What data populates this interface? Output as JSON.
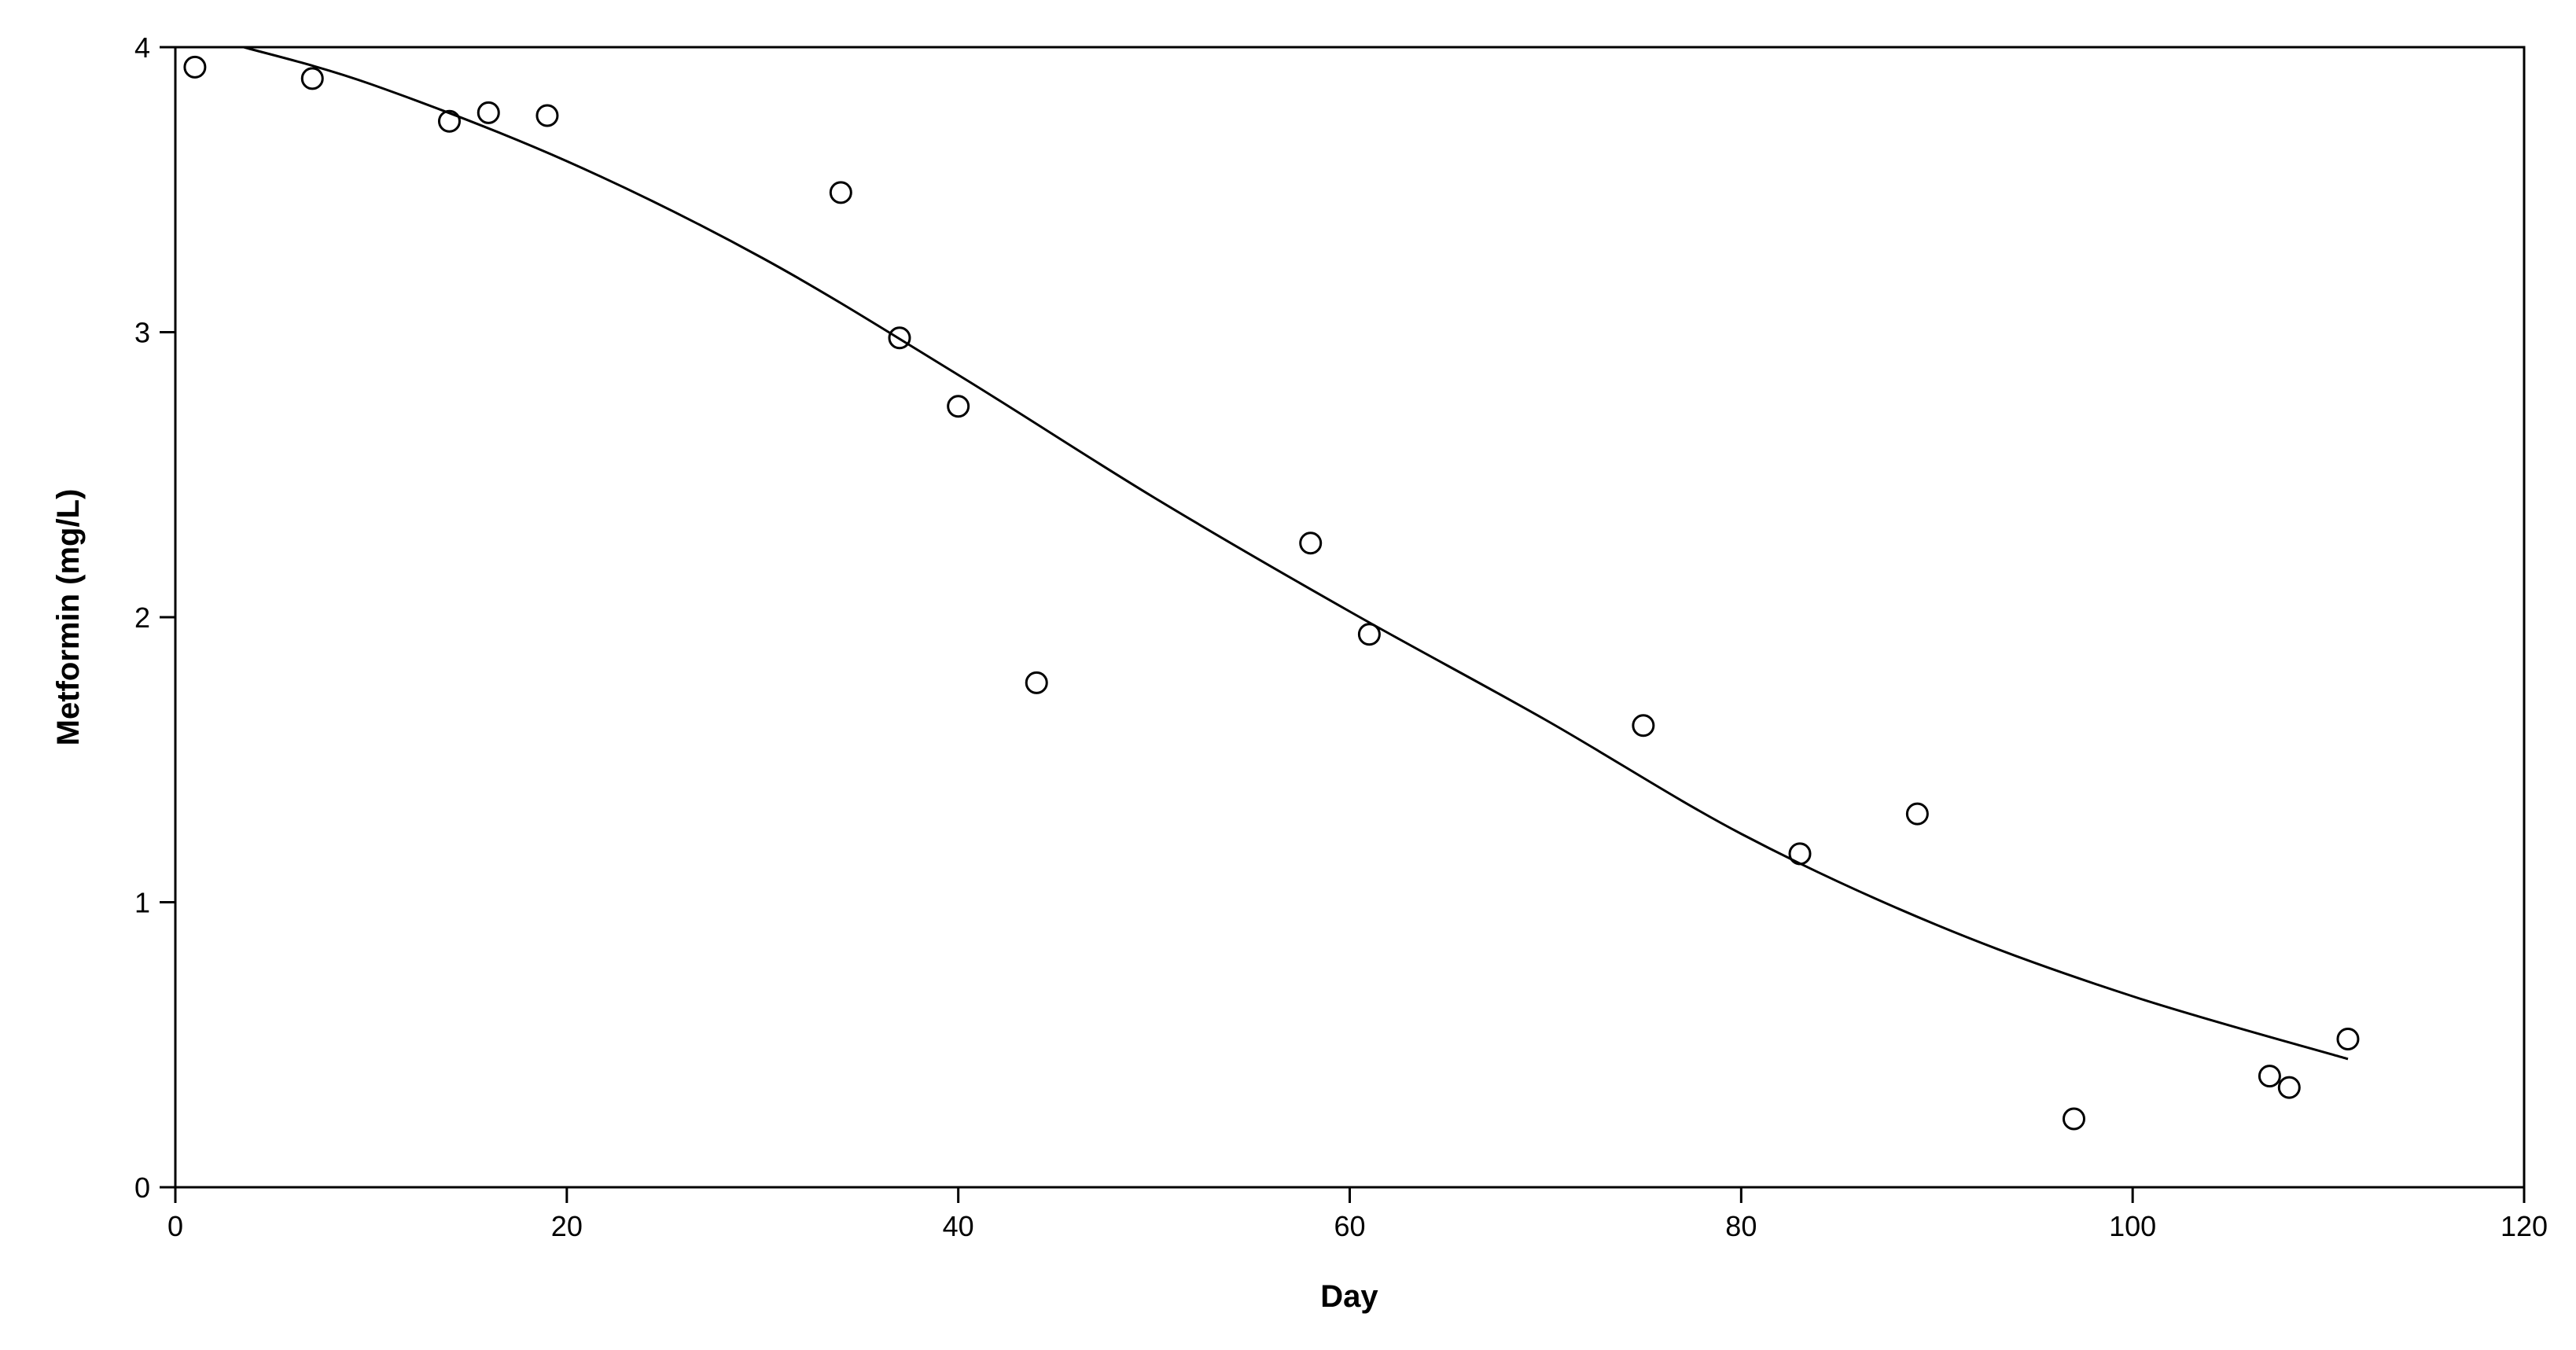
{
  "chart_data": {
    "type": "scatter",
    "title": "",
    "xlabel": "Day",
    "ylabel": "Metformin (mg/L)",
    "xlim": [
      0,
      120
    ],
    "ylim": [
      0,
      4
    ],
    "x_ticks": [
      0,
      20,
      40,
      60,
      80,
      100,
      120
    ],
    "y_ticks": [
      0,
      1,
      2,
      3,
      4
    ],
    "grid": false,
    "legend": "none",
    "series": [
      {
        "kind": "points",
        "marker": "open-circle",
        "color": "#000000",
        "points": [
          {
            "x": 1,
            "y": 3.93
          },
          {
            "x": 7,
            "y": 3.89
          },
          {
            "x": 14,
            "y": 3.74
          },
          {
            "x": 16,
            "y": 3.77
          },
          {
            "x": 19,
            "y": 3.76
          },
          {
            "x": 34,
            "y": 3.49
          },
          {
            "x": 37,
            "y": 2.98
          },
          {
            "x": 40,
            "y": 2.74
          },
          {
            "x": 44,
            "y": 1.77
          },
          {
            "x": 58,
            "y": 2.26
          },
          {
            "x": 61,
            "y": 1.94
          },
          {
            "x": 75,
            "y": 1.62
          },
          {
            "x": 83,
            "y": 1.17
          },
          {
            "x": 89,
            "y": 1.31
          },
          {
            "x": 97,
            "y": 0.24
          },
          {
            "x": 107,
            "y": 0.39
          },
          {
            "x": 108,
            "y": 0.35
          },
          {
            "x": 111,
            "y": 0.52
          }
        ]
      },
      {
        "kind": "fitted-curve",
        "color": "#000000",
        "points": [
          {
            "x": 3.5,
            "y": 4.0
          },
          {
            "x": 10,
            "y": 3.87
          },
          {
            "x": 20,
            "y": 3.6
          },
          {
            "x": 30,
            "y": 3.26
          },
          {
            "x": 40,
            "y": 2.85
          },
          {
            "x": 50,
            "y": 2.42
          },
          {
            "x": 60,
            "y": 2.02
          },
          {
            "x": 70,
            "y": 1.64
          },
          {
            "x": 80,
            "y": 1.24
          },
          {
            "x": 90,
            "y": 0.92
          },
          {
            "x": 100,
            "y": 0.67
          },
          {
            "x": 111,
            "y": 0.45
          }
        ]
      }
    ]
  }
}
